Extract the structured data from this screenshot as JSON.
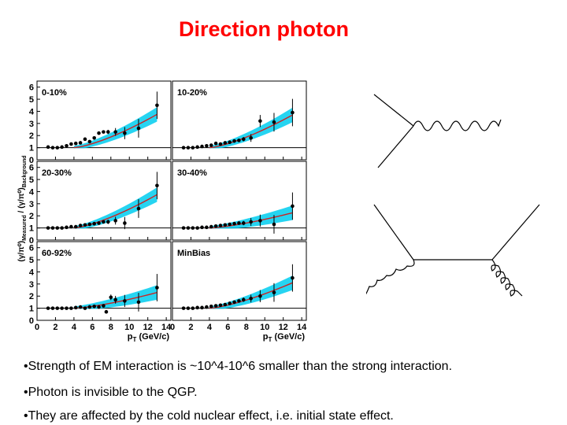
{
  "title": "Direction photon",
  "figure": {
    "ylabel_main": "(γ/π⁰)",
    "ylabel_sub1": "Measured",
    "ylabel_mid": " / (γ/π⁰)",
    "ylabel_sub2": "Background",
    "xlabel_main": "p",
    "xlabel_sub": "T",
    "xlabel_unit": " (GeV/c)",
    "y_ticks": [
      "0",
      "1",
      "2",
      "3",
      "4",
      "5",
      "6"
    ],
    "x_ticks": [
      "0",
      "2",
      "4",
      "6",
      "8",
      "10",
      "12",
      "14"
    ],
    "colors": {
      "band": "#00ccee",
      "fit": "#cc2222",
      "points": "#000000"
    }
  },
  "chart_data": [
    {
      "type": "scatter",
      "panel_label": "0-10%",
      "xlim": [
        0,
        14.5
      ],
      "ylim": [
        0,
        6.5
      ],
      "reference_line": 1,
      "x": [
        1.2,
        1.7,
        2.2,
        2.7,
        3.2,
        3.7,
        4.2,
        4.7,
        5.2,
        5.7,
        6.2,
        6.7,
        7.2,
        7.7,
        8.5,
        9.5,
        11,
        13
      ],
      "y": [
        1.05,
        1.0,
        1.0,
        1.05,
        1.15,
        1.3,
        1.35,
        1.4,
        1.7,
        1.5,
        1.8,
        2.2,
        2.3,
        2.3,
        2.3,
        2.2,
        2.6,
        4.5
      ]
    },
    {
      "type": "scatter",
      "panel_label": "10-20%",
      "xlim": [
        0,
        14.5
      ],
      "ylim": [
        0,
        6.5
      ],
      "reference_line": 1,
      "x": [
        1.2,
        1.7,
        2.2,
        2.7,
        3.2,
        3.7,
        4.2,
        4.7,
        5.2,
        5.7,
        6.2,
        6.7,
        7.2,
        7.7,
        8.5,
        9.5,
        11,
        13
      ],
      "y": [
        1.0,
        1.0,
        1.0,
        1.05,
        1.1,
        1.15,
        1.2,
        1.35,
        1.3,
        1.4,
        1.45,
        1.55,
        1.6,
        1.7,
        1.8,
        3.2,
        3.1,
        3.9
      ]
    },
    {
      "type": "scatter",
      "panel_label": "20-30%",
      "xlim": [
        0,
        14.5
      ],
      "ylim": [
        0,
        6.5
      ],
      "reference_line": 1,
      "x": [
        1.2,
        1.7,
        2.2,
        2.7,
        3.2,
        3.7,
        4.2,
        4.7,
        5.2,
        5.7,
        6.2,
        6.7,
        7.2,
        7.7,
        8.5,
        9.5,
        11,
        13
      ],
      "y": [
        1.0,
        1.0,
        1.0,
        1.0,
        1.05,
        1.1,
        1.1,
        1.2,
        1.25,
        1.3,
        1.35,
        1.4,
        1.5,
        1.5,
        1.6,
        1.4,
        2.6,
        4.5
      ]
    },
    {
      "type": "scatter",
      "panel_label": "30-40%",
      "xlim": [
        0,
        14.5
      ],
      "ylim": [
        0,
        6.5
      ],
      "reference_line": 1,
      "x": [
        1.2,
        1.7,
        2.2,
        2.7,
        3.2,
        3.7,
        4.2,
        4.7,
        5.2,
        5.7,
        6.2,
        6.7,
        7.2,
        7.7,
        8.5,
        9.5,
        11,
        13
      ],
      "y": [
        1.0,
        1.0,
        1.0,
        1.0,
        1.05,
        1.05,
        1.1,
        1.15,
        1.2,
        1.25,
        1.3,
        1.35,
        1.4,
        1.4,
        1.5,
        1.6,
        1.3,
        2.8
      ]
    },
    {
      "type": "scatter",
      "panel_label": "60-92%",
      "xlim": [
        0,
        14.5
      ],
      "ylim": [
        0,
        6.5
      ],
      "reference_line": 1,
      "x": [
        1.2,
        1.7,
        2.2,
        2.7,
        3.2,
        3.7,
        4.2,
        4.7,
        5.2,
        5.7,
        6.2,
        6.7,
        7.2,
        7.5,
        8.0,
        8.5,
        9.5,
        11,
        13
      ],
      "y": [
        1.0,
        1.0,
        1.0,
        1.0,
        1.0,
        1.0,
        1.05,
        1.1,
        1.0,
        1.1,
        1.15,
        1.1,
        1.2,
        0.7,
        1.9,
        1.7,
        1.6,
        1.5,
        2.7
      ]
    },
    {
      "type": "scatter",
      "panel_label": "MinBias",
      "xlim": [
        0,
        14.5
      ],
      "ylim": [
        0,
        6.5
      ],
      "reference_line": 1,
      "x": [
        1.2,
        1.7,
        2.2,
        2.7,
        3.2,
        3.7,
        4.2,
        4.7,
        5.2,
        5.7,
        6.2,
        6.7,
        7.2,
        7.7,
        8.5,
        9.5,
        11,
        13
      ],
      "y": [
        1.0,
        1.0,
        1.0,
        1.05,
        1.05,
        1.1,
        1.15,
        1.2,
        1.25,
        1.3,
        1.4,
        1.5,
        1.6,
        1.7,
        1.8,
        2.0,
        2.3,
        3.5
      ]
    }
  ],
  "bullets": [
    "•Strength of EM interaction is ~10^4-10^6 smaller than the strong interaction.",
    "•Photon is invisible to the QGP.",
    "•They are affected by the cold nuclear effect, i.e. initial state effect."
  ]
}
